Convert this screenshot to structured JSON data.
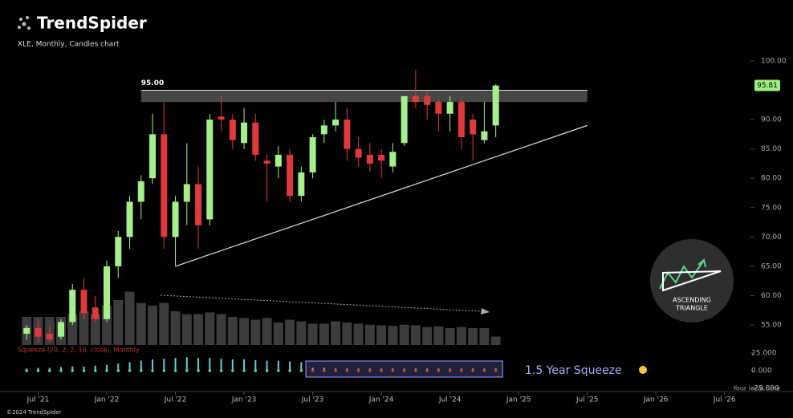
{
  "logo": "TrendSpider",
  "copyright": "©2024 TrendSpider",
  "chart_data": {
    "type": "candlestick",
    "title": "XLE, Monthly, Candles chart",
    "x": [
      "2021-06",
      "2021-07",
      "2021-08",
      "2021-09",
      "2021-10",
      "2021-11",
      "2021-12",
      "2022-01",
      "2022-02",
      "2022-03",
      "2022-04",
      "2022-05",
      "2022-06",
      "2022-07",
      "2022-08",
      "2022-09",
      "2022-10",
      "2022-11",
      "2022-12",
      "2023-01",
      "2023-02",
      "2023-03",
      "2023-04",
      "2023-05",
      "2023-06",
      "2023-07",
      "2023-08",
      "2023-09",
      "2023-10",
      "2023-11",
      "2023-12",
      "2024-01",
      "2024-02",
      "2024-03",
      "2024-04",
      "2024-05",
      "2024-06",
      "2024-07",
      "2024-08",
      "2024-09",
      "2024-10",
      "2024-11"
    ],
    "open": [
      53.5,
      54.5,
      53.5,
      53,
      55.5,
      61,
      58,
      56,
      65,
      70,
      76,
      80,
      87.5,
      70,
      76,
      79,
      73,
      90.5,
      90,
      86,
      89.5,
      83,
      82,
      84,
      77,
      81,
      87.5,
      89,
      90,
      85,
      84,
      84,
      82,
      86,
      94,
      94,
      93,
      91,
      93,
      90,
      86.5,
      89
    ],
    "high": [
      55,
      56,
      55,
      56,
      62,
      63,
      60,
      66,
      71,
      77,
      80.5,
      91,
      93,
      77,
      86,
      82,
      91,
      94,
      91,
      92,
      91,
      84,
      85.5,
      85,
      82,
      87.5,
      90,
      93,
      92,
      87,
      86,
      85,
      86,
      94,
      98.5,
      95,
      93.5,
      94,
      94,
      91,
      93,
      96
    ],
    "low": [
      52.5,
      52,
      52,
      52.5,
      55,
      56,
      55.5,
      55.5,
      63,
      68,
      73,
      79,
      68,
      65,
      72,
      68,
      72,
      88,
      85,
      85,
      83,
      76,
      80,
      76,
      76,
      80,
      86,
      88,
      83,
      82,
      81,
      80,
      81,
      85.5,
      92,
      90,
      88,
      88,
      85,
      83,
      86,
      87
    ],
    "close": [
      54.5,
      53,
      52.5,
      55.5,
      61,
      57,
      56,
      65,
      70,
      76,
      79.5,
      87.5,
      70,
      76,
      79,
      72,
      90,
      90,
      86.5,
      89.5,
      84,
      82.5,
      84,
      77,
      81,
      87,
      89,
      90,
      85,
      83.5,
      82.5,
      83,
      84.5,
      94,
      93,
      92.5,
      91,
      93,
      87,
      87.5,
      88,
      95.81
    ],
    "up_color": "#a6f08a",
    "down_color": "#e0393b",
    "ylim": [
      52,
      108
    ],
    "yticks": [
      {
        "value": 55,
        "label": "55.00"
      },
      {
        "value": 60,
        "label": "60.00"
      },
      {
        "value": 65,
        "label": "65.00"
      },
      {
        "value": 70,
        "label": "70.00"
      },
      {
        "value": 75,
        "label": "75.00"
      },
      {
        "value": 80,
        "label": "80.00"
      },
      {
        "value": 85,
        "label": "85.00"
      },
      {
        "value": 90,
        "label": "90.00"
      },
      {
        "value": 100,
        "label": "100.00"
      }
    ],
    "xlim": [
      "2021-05",
      "2026-08"
    ],
    "xticks": [
      {
        "value": "2021-07",
        "label": "Jul '21"
      },
      {
        "value": "2022-01",
        "label": "Jan '22"
      },
      {
        "value": "2022-07",
        "label": "Jul '22"
      },
      {
        "value": "2023-01",
        "label": "Jan '23"
      },
      {
        "value": "2023-07",
        "label": "Jul '23"
      },
      {
        "value": "2024-01",
        "label": "Jan '24"
      },
      {
        "value": "2024-07",
        "label": "Jul '24"
      },
      {
        "value": "2025-01",
        "label": "Jan '25"
      },
      {
        "value": "2025-07",
        "label": "Jul '25"
      },
      {
        "value": "2026-01",
        "label": "Jan '26"
      },
      {
        "value": "2026-07",
        "label": "Jul '26"
      }
    ],
    "last_price": 95.81,
    "last_price_color": "#9cf07a",
    "resistance": {
      "value": 95,
      "value_label": "95.00",
      "band_low": 93,
      "x": [
        "2022-04",
        "2025-07"
      ]
    },
    "trendline": {
      "x": [
        "2022-07",
        "2025-07"
      ],
      "y": [
        65,
        89
      ]
    },
    "volume": {
      "values": [
        50,
        50,
        50,
        50,
        55,
        60,
        55,
        70,
        80,
        95,
        75,
        70,
        75,
        60,
        55,
        55,
        58,
        55,
        50,
        48,
        45,
        48,
        40,
        45,
        42,
        38,
        38,
        42,
        40,
        38,
        36,
        35,
        34,
        36,
        35,
        32,
        33,
        30,
        32,
        30,
        30,
        15
      ],
      "ylim": [
        0,
        100
      ],
      "color": "#3c3c3c"
    },
    "squeeze": {
      "title": "Squeeze (20, 2, 2, 10, close), Monthly",
      "values": [
        3,
        4,
        4,
        5,
        6,
        6,
        7,
        8,
        10,
        12,
        14,
        16,
        17,
        18,
        19,
        18,
        18,
        17,
        16,
        16,
        15,
        14,
        14,
        13,
        12,
        4,
        4,
        3,
        3,
        3,
        3,
        3,
        3,
        3,
        3,
        3,
        3,
        3,
        3,
        3,
        3,
        3
      ],
      "on": [
        false,
        false,
        false,
        false,
        false,
        false,
        false,
        false,
        false,
        false,
        false,
        false,
        false,
        false,
        false,
        false,
        false,
        false,
        false,
        false,
        false,
        false,
        false,
        false,
        false,
        true,
        true,
        true,
        true,
        true,
        true,
        true,
        true,
        true,
        true,
        true,
        true,
        true,
        true,
        true,
        true,
        true
      ],
      "bar_color": "#5fd3d8",
      "off_color": "#5fd3a8",
      "on_color": "#e0393b",
      "ylim": [
        -25,
        30
      ],
      "yticks": [
        {
          "value": 25,
          "label": "25.000"
        },
        {
          "value": 0,
          "label": "0.000"
        },
        {
          "value": -25,
          "label": "-25.000"
        }
      ],
      "annotation": "1.5 Year Squeeze"
    },
    "badge": [
      "ASCENDING",
      "TRIANGLE"
    ],
    "footer": "Your local time"
  }
}
